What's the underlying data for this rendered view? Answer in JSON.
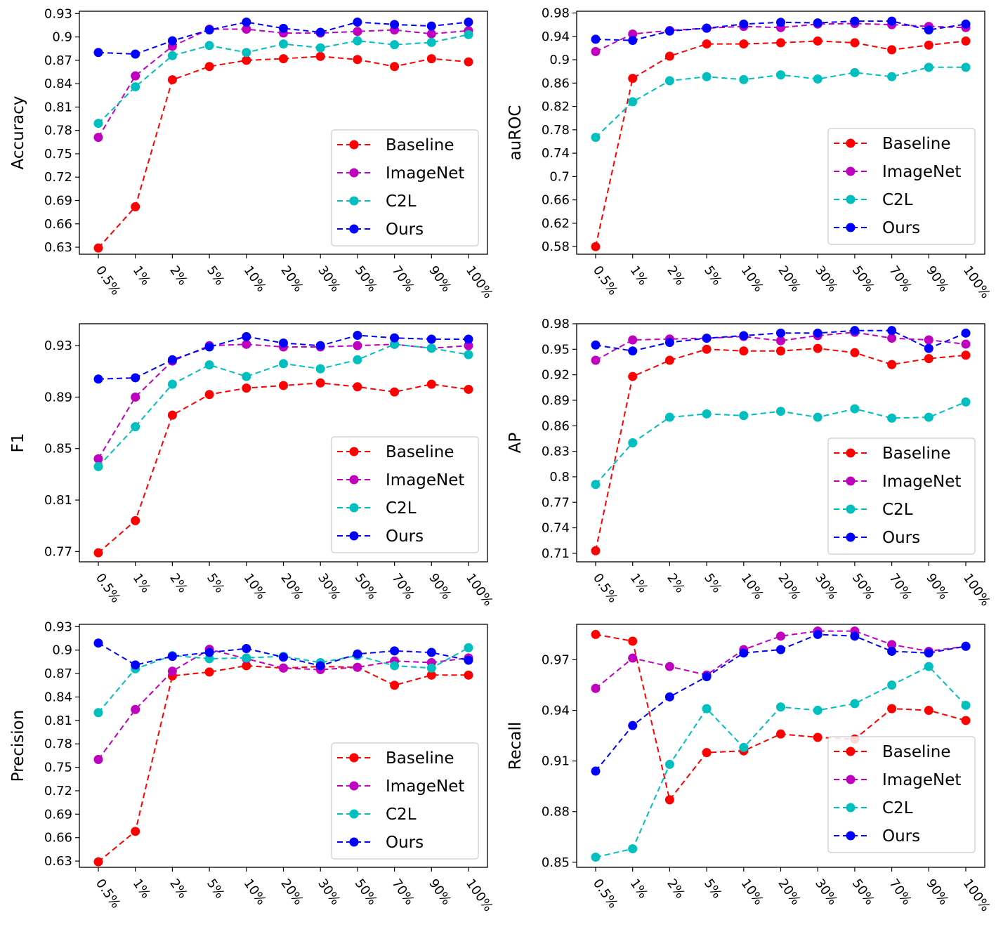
{
  "figure": {
    "x_categories": [
      "0.5%",
      "1%",
      "2%",
      "5%",
      "10%",
      "20%",
      "30%",
      "50%",
      "70%",
      "90%",
      "100%"
    ],
    "legend_series": [
      "Baseline",
      "ImageNet",
      "C2L",
      "Ours"
    ],
    "colors": {
      "Baseline": "#ff0000",
      "ImageNet": "#bf00bf",
      "C2L": "#00bfbf",
      "Ours": "#0000ff"
    }
  },
  "chart_data": [
    {
      "type": "line",
      "title": "",
      "xlabel": "",
      "ylabel": "Accuracy",
      "ylim": [
        0.621,
        0.933
      ],
      "yticks": [
        0.63,
        0.66,
        0.69,
        0.72,
        0.75,
        0.78,
        0.81,
        0.84,
        0.87,
        0.9,
        0.93
      ],
      "ytick_labels": [
        "0.63",
        "0.66",
        "0.69",
        "0.72",
        "0.75",
        "0.78",
        "0.81",
        "0.84",
        "0.87",
        "0.9",
        "0.93"
      ],
      "legend_position": "lower-right",
      "grid": false,
      "series": [
        {
          "name": "Baseline",
          "values": [
            0.629,
            0.682,
            0.845,
            0.862,
            0.87,
            0.872,
            0.875,
            0.871,
            0.862,
            0.872,
            0.868
          ]
        },
        {
          "name": "ImageNet",
          "values": [
            0.771,
            0.85,
            0.888,
            0.91,
            0.91,
            0.905,
            0.905,
            0.907,
            0.909,
            0.904,
            0.908
          ]
        },
        {
          "name": "C2L",
          "values": [
            0.789,
            0.836,
            0.876,
            0.889,
            0.88,
            0.891,
            0.886,
            0.895,
            0.89,
            0.893,
            0.903
          ]
        },
        {
          "name": "Ours",
          "values": [
            0.88,
            0.878,
            0.895,
            0.909,
            0.919,
            0.911,
            0.906,
            0.919,
            0.916,
            0.914,
            0.919
          ]
        }
      ]
    },
    {
      "type": "line",
      "title": "",
      "xlabel": "",
      "ylabel": "auROC",
      "ylim": [
        0.567,
        0.983
      ],
      "yticks": [
        0.58,
        0.62,
        0.66,
        0.7,
        0.74,
        0.78,
        0.82,
        0.86,
        0.9,
        0.94,
        0.98
      ],
      "ytick_labels": [
        "0.58",
        "0.62",
        "0.66",
        "0.7",
        "0.74",
        "0.78",
        "0.82",
        "0.86",
        "0.9",
        "0.94",
        "0.98"
      ],
      "legend_position": "lower-right",
      "grid": false,
      "series": [
        {
          "name": "Baseline",
          "values": [
            0.58,
            0.868,
            0.906,
            0.927,
            0.927,
            0.929,
            0.932,
            0.929,
            0.917,
            0.925,
            0.932
          ]
        },
        {
          "name": "ImageNet",
          "values": [
            0.914,
            0.944,
            0.95,
            0.954,
            0.957,
            0.955,
            0.961,
            0.962,
            0.96,
            0.957,
            0.955
          ]
        },
        {
          "name": "C2L",
          "values": [
            0.767,
            0.828,
            0.864,
            0.871,
            0.866,
            0.874,
            0.867,
            0.878,
            0.871,
            0.887,
            0.887
          ]
        },
        {
          "name": "Ours",
          "values": [
            0.935,
            0.933,
            0.949,
            0.954,
            0.961,
            0.964,
            0.963,
            0.966,
            0.966,
            0.951,
            0.961
          ]
        }
      ]
    },
    {
      "type": "line",
      "title": "",
      "xlabel": "",
      "ylabel": "F1",
      "ylim": [
        0.762,
        0.947
      ],
      "yticks": [
        0.77,
        0.81,
        0.85,
        0.89,
        0.93
      ],
      "ytick_labels": [
        "0.77",
        "0.81",
        "0.85",
        "0.89",
        "0.93"
      ],
      "legend_position": "lower-right",
      "grid": false,
      "series": [
        {
          "name": "Baseline",
          "values": [
            0.769,
            0.794,
            0.876,
            0.892,
            0.897,
            0.899,
            0.901,
            0.898,
            0.894,
            0.9,
            0.896
          ]
        },
        {
          "name": "ImageNet",
          "values": [
            0.842,
            0.89,
            0.918,
            0.93,
            0.931,
            0.929,
            0.929,
            0.93,
            0.931,
            0.928,
            0.93
          ]
        },
        {
          "name": "C2L",
          "values": [
            0.836,
            0.867,
            0.9,
            0.915,
            0.906,
            0.916,
            0.912,
            0.919,
            0.931,
            0.928,
            0.923
          ]
        },
        {
          "name": "Ours",
          "values": [
            0.904,
            0.905,
            0.919,
            0.929,
            0.937,
            0.932,
            0.93,
            0.938,
            0.936,
            0.935,
            0.935
          ]
        }
      ]
    },
    {
      "type": "line",
      "title": "",
      "xlabel": "",
      "ylabel": "AP",
      "ylim": [
        0.7,
        0.98
      ],
      "yticks": [
        0.71,
        0.74,
        0.77,
        0.8,
        0.83,
        0.86,
        0.89,
        0.92,
        0.95,
        0.98
      ],
      "ytick_labels": [
        "0.71",
        "0.74",
        "0.77",
        "0.8",
        "0.83",
        "0.86",
        "0.89",
        "0.92",
        "0.95",
        "0.98"
      ],
      "legend_position": "lower-right",
      "grid": false,
      "series": [
        {
          "name": "Baseline",
          "values": [
            0.713,
            0.918,
            0.937,
            0.95,
            0.948,
            0.948,
            0.951,
            0.946,
            0.932,
            0.939,
            0.943
          ]
        },
        {
          "name": "ImageNet",
          "values": [
            0.937,
            0.961,
            0.962,
            0.963,
            0.965,
            0.96,
            0.966,
            0.97,
            0.963,
            0.961,
            0.956
          ]
        },
        {
          "name": "C2L",
          "values": [
            0.791,
            0.84,
            0.87,
            0.874,
            0.872,
            0.877,
            0.87,
            0.88,
            0.869,
            0.87,
            0.888
          ]
        },
        {
          "name": "Ours",
          "values": [
            0.955,
            0.948,
            0.958,
            0.963,
            0.966,
            0.969,
            0.969,
            0.972,
            0.972,
            0.951,
            0.969
          ]
        }
      ]
    },
    {
      "type": "line",
      "title": "",
      "xlabel": "",
      "ylabel": "Precision",
      "ylim": [
        0.622,
        0.933
      ],
      "yticks": [
        0.63,
        0.66,
        0.69,
        0.72,
        0.75,
        0.78,
        0.81,
        0.84,
        0.87,
        0.9,
        0.93
      ],
      "ytick_labels": [
        "0.63",
        "0.66",
        "0.69",
        "0.72",
        "0.75",
        "0.78",
        "0.81",
        "0.84",
        "0.87",
        "0.9",
        "0.93"
      ],
      "legend_position": "lower-right",
      "grid": false,
      "series": [
        {
          "name": "Baseline",
          "values": [
            0.629,
            0.668,
            0.867,
            0.872,
            0.88,
            0.877,
            0.879,
            0.878,
            0.855,
            0.868,
            0.868
          ]
        },
        {
          "name": "ImageNet",
          "values": [
            0.76,
            0.824,
            0.873,
            0.901,
            0.889,
            0.877,
            0.875,
            0.878,
            0.886,
            0.884,
            0.89
          ]
        },
        {
          "name": "C2L",
          "values": [
            0.82,
            0.876,
            0.893,
            0.889,
            0.89,
            0.892,
            0.884,
            0.893,
            0.88,
            0.877,
            0.903
          ]
        },
        {
          "name": "Ours",
          "values": [
            0.909,
            0.881,
            0.892,
            0.897,
            0.902,
            0.891,
            0.88,
            0.895,
            0.899,
            0.897,
            0.887
          ]
        }
      ]
    },
    {
      "type": "line",
      "title": "",
      "xlabel": "",
      "ylabel": "Recall",
      "ylim": [
        0.847,
        0.991
      ],
      "yticks": [
        0.85,
        0.88,
        0.91,
        0.94,
        0.97
      ],
      "ytick_labels": [
        "0.85",
        "0.88",
        "0.91",
        "0.94",
        "0.97"
      ],
      "legend_position": "lower-right",
      "grid": false,
      "series": [
        {
          "name": "Baseline",
          "values": [
            0.985,
            0.981,
            0.887,
            0.915,
            0.916,
            0.926,
            0.924,
            0.923,
            0.941,
            0.94,
            0.934
          ]
        },
        {
          "name": "ImageNet",
          "values": [
            0.953,
            0.971,
            0.966,
            0.961,
            0.976,
            0.984,
            0.987,
            0.987,
            0.979,
            0.975,
            0.978
          ]
        },
        {
          "name": "C2L",
          "values": [
            0.853,
            0.858,
            0.908,
            0.941,
            0.918,
            0.942,
            0.94,
            0.944,
            0.955,
            0.966,
            0.943
          ]
        },
        {
          "name": "Ours",
          "values": [
            0.904,
            0.931,
            0.948,
            0.96,
            0.974,
            0.976,
            0.985,
            0.984,
            0.975,
            0.974,
            0.978
          ]
        }
      ]
    }
  ]
}
